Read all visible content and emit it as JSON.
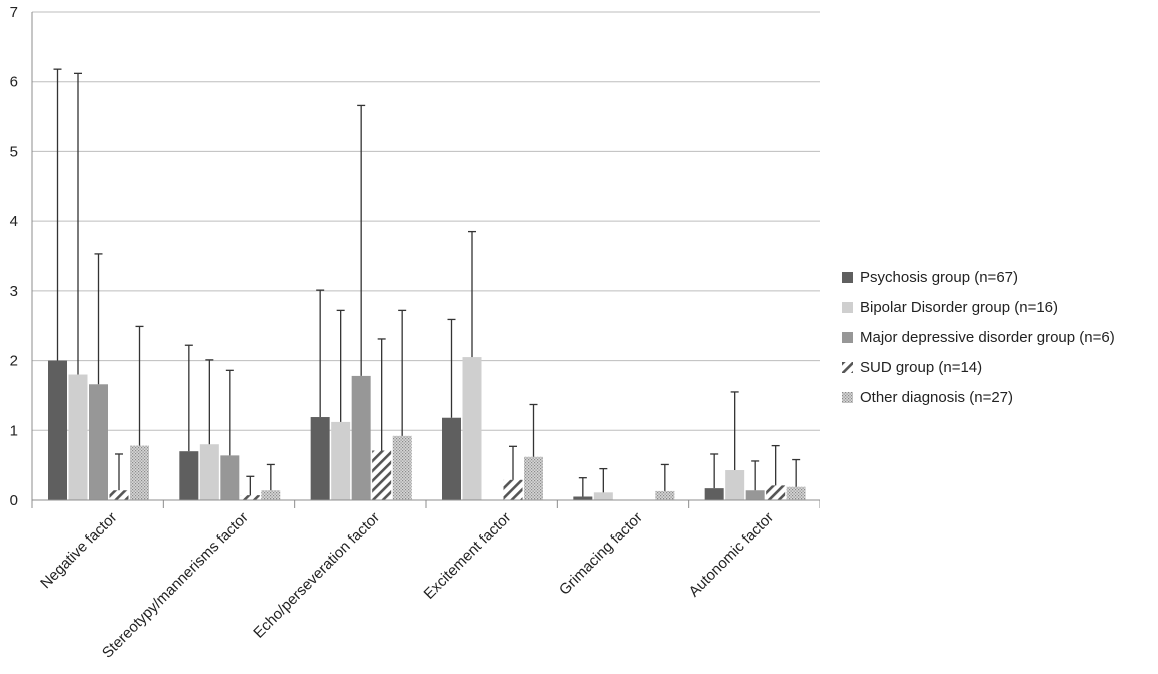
{
  "chart_data": {
    "type": "bar",
    "title": "",
    "xlabel": "",
    "ylabel": "",
    "ylim": [
      0,
      7
    ],
    "yticks": [
      "0",
      "1",
      "2",
      "3",
      "4",
      "5",
      "6",
      "7"
    ],
    "grid": true,
    "legend_position": "right",
    "categories": [
      "Negative factor",
      "Stereotypy/mannerisms factor",
      "Echo/perseveration factor",
      "Excitement factor",
      "Grimacing factor",
      "Autonomic factor"
    ],
    "series": [
      {
        "name": "Psychosis group (n=67)",
        "color": "#5f5f5f",
        "pattern": "solid",
        "values": [
          2.0,
          0.7,
          1.19,
          1.18,
          0.05,
          0.17
        ],
        "error_upper": [
          6.18,
          2.22,
          3.01,
          2.59,
          0.32,
          0.66
        ]
      },
      {
        "name": "Bipolar Disorder group (n=16)",
        "color": "#cfcfcf",
        "pattern": "solid",
        "values": [
          1.8,
          0.8,
          1.12,
          2.05,
          0.11,
          0.43
        ],
        "error_upper": [
          6.12,
          2.01,
          2.72,
          3.85,
          0.45,
          1.55
        ]
      },
      {
        "name": "Major depressive disorder group (n=6)",
        "color": "#979797",
        "pattern": "solid",
        "values": [
          1.66,
          0.64,
          1.78,
          0.0,
          0.0,
          0.14
        ],
        "error_upper": [
          3.53,
          1.86,
          5.66,
          null,
          null,
          0.56
        ]
      },
      {
        "name": "SUD group (n=14)",
        "color": "#555555",
        "pattern": "diagonal",
        "values": [
          0.14,
          0.07,
          0.71,
          0.29,
          0.0,
          0.21
        ],
        "error_upper": [
          0.66,
          0.34,
          2.31,
          0.77,
          null,
          0.78
        ]
      },
      {
        "name": "Other diagnosis (n=27)",
        "color": "#c4c4c4",
        "pattern": "dotted",
        "values": [
          0.78,
          0.14,
          0.92,
          0.62,
          0.13,
          0.19
        ],
        "error_upper": [
          2.49,
          0.51,
          2.72,
          1.37,
          0.51,
          0.58
        ]
      }
    ]
  }
}
